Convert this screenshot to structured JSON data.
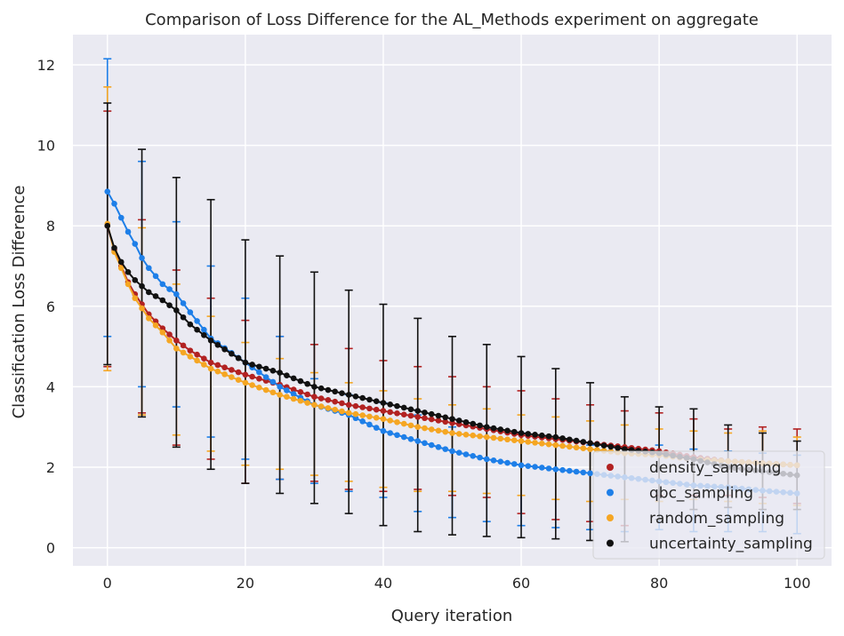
{
  "chart_data": {
    "type": "line",
    "title": "Comparison of Loss Difference for the AL_Methods experiment on aggregate",
    "xlabel": "Query iteration",
    "ylabel": "Classification Loss Difference",
    "xlim": [
      -5,
      105
    ],
    "ylim": [
      -0.45,
      12.75
    ],
    "xticks": [
      0,
      20,
      40,
      60,
      80,
      100
    ],
    "yticks": [
      0,
      2,
      4,
      6,
      8,
      10,
      12
    ],
    "x_max_iteration": 100,
    "errorbar_every": 5,
    "background": "#EAEAF2",
    "grid": true,
    "legend_position": "lower-right",
    "series": [
      {
        "name": "density_sampling",
        "color": "#B22222",
        "mean_anchors": [
          [
            0,
            8.0
          ],
          [
            1,
            7.4
          ],
          [
            2,
            7.0
          ],
          [
            3,
            6.6
          ],
          [
            4,
            6.3
          ],
          [
            5,
            6.05
          ],
          [
            6,
            5.8
          ],
          [
            8,
            5.45
          ],
          [
            10,
            5.15
          ],
          [
            12,
            4.9
          ],
          [
            15,
            4.6
          ],
          [
            20,
            4.3
          ],
          [
            25,
            4.05
          ],
          [
            30,
            3.75
          ],
          [
            35,
            3.55
          ],
          [
            40,
            3.4
          ],
          [
            45,
            3.25
          ],
          [
            50,
            3.1
          ],
          [
            55,
            2.95
          ],
          [
            60,
            2.8
          ],
          [
            65,
            2.7
          ],
          [
            70,
            2.6
          ],
          [
            75,
            2.5
          ],
          [
            80,
            2.4
          ],
          [
            85,
            2.25
          ],
          [
            90,
            2.15
          ],
          [
            95,
            2.1
          ],
          [
            100,
            2.05
          ]
        ],
        "err_low": [
          [
            0,
            4.5
          ],
          [
            5,
            3.35
          ],
          [
            10,
            2.55
          ],
          [
            15,
            2.2
          ],
          [
            20,
            1.6
          ],
          [
            25,
            1.7
          ],
          [
            30,
            1.65
          ],
          [
            35,
            1.45
          ],
          [
            40,
            1.4
          ],
          [
            45,
            1.45
          ],
          [
            50,
            1.3
          ],
          [
            55,
            1.25
          ],
          [
            60,
            0.85
          ],
          [
            65,
            0.7
          ],
          [
            70,
            0.65
          ],
          [
            75,
            0.55
          ],
          [
            80,
            1.3
          ],
          [
            85,
            1.3
          ],
          [
            90,
            1.3
          ],
          [
            95,
            1.25
          ],
          [
            100,
            1.1
          ]
        ],
        "err_high": [
          [
            0,
            10.85
          ],
          [
            5,
            8.15
          ],
          [
            10,
            6.9
          ],
          [
            15,
            6.2
          ],
          [
            20,
            5.65
          ],
          [
            25,
            5.25
          ],
          [
            30,
            5.05
          ],
          [
            35,
            4.95
          ],
          [
            40,
            4.65
          ],
          [
            45,
            4.5
          ],
          [
            50,
            4.25
          ],
          [
            55,
            4.0
          ],
          [
            60,
            3.9
          ],
          [
            65,
            3.7
          ],
          [
            70,
            3.55
          ],
          [
            75,
            3.4
          ],
          [
            80,
            3.35
          ],
          [
            85,
            3.2
          ],
          [
            90,
            2.95
          ],
          [
            95,
            3.0
          ],
          [
            100,
            2.95
          ]
        ]
      },
      {
        "name": "qbc_sampling",
        "color": "#1E7FE8",
        "mean_anchors": [
          [
            0,
            8.85
          ],
          [
            1,
            8.55
          ],
          [
            2,
            8.2
          ],
          [
            3,
            7.85
          ],
          [
            4,
            7.55
          ],
          [
            5,
            7.2
          ],
          [
            6,
            6.95
          ],
          [
            8,
            6.55
          ],
          [
            10,
            6.3
          ],
          [
            12,
            5.85
          ],
          [
            15,
            5.2
          ],
          [
            20,
            4.6
          ],
          [
            25,
            4.0
          ],
          [
            30,
            3.55
          ],
          [
            35,
            3.3
          ],
          [
            40,
            2.9
          ],
          [
            45,
            2.65
          ],
          [
            50,
            2.4
          ],
          [
            55,
            2.2
          ],
          [
            60,
            2.05
          ],
          [
            65,
            1.95
          ],
          [
            70,
            1.85
          ],
          [
            75,
            1.75
          ],
          [
            80,
            1.65
          ],
          [
            85,
            1.55
          ],
          [
            90,
            1.5
          ],
          [
            95,
            1.42
          ],
          [
            100,
            1.35
          ]
        ],
        "err_low": [
          [
            0,
            5.25
          ],
          [
            5,
            4.0
          ],
          [
            10,
            3.5
          ],
          [
            15,
            2.75
          ],
          [
            20,
            2.2
          ],
          [
            25,
            1.7
          ],
          [
            30,
            1.6
          ],
          [
            35,
            1.4
          ],
          [
            40,
            1.25
          ],
          [
            45,
            0.9
          ],
          [
            50,
            0.75
          ],
          [
            55,
            0.65
          ],
          [
            60,
            0.55
          ],
          [
            65,
            0.5
          ],
          [
            70,
            0.45
          ],
          [
            75,
            0.4
          ],
          [
            80,
            0.45
          ],
          [
            85,
            0.4
          ],
          [
            90,
            0.4
          ],
          [
            95,
            0.4
          ],
          [
            100,
            0.35
          ]
        ],
        "err_high": [
          [
            0,
            12.15
          ],
          [
            5,
            9.6
          ],
          [
            10,
            8.1
          ],
          [
            15,
            7.0
          ],
          [
            20,
            6.2
          ],
          [
            25,
            5.25
          ],
          [
            30,
            4.2
          ],
          [
            35,
            3.8
          ],
          [
            40,
            3.6
          ],
          [
            45,
            3.3
          ],
          [
            50,
            3.0
          ],
          [
            55,
            2.95
          ],
          [
            60,
            2.85
          ],
          [
            65,
            2.7
          ],
          [
            70,
            2.55
          ],
          [
            75,
            2.5
          ],
          [
            80,
            2.55
          ],
          [
            85,
            2.45
          ],
          [
            90,
            2.4
          ],
          [
            95,
            2.35
          ],
          [
            100,
            2.3
          ]
        ]
      },
      {
        "name": "random_sampling",
        "color": "#F5A623",
        "mean_anchors": [
          [
            0,
            8.05
          ],
          [
            1,
            7.35
          ],
          [
            2,
            6.95
          ],
          [
            3,
            6.55
          ],
          [
            4,
            6.2
          ],
          [
            5,
            5.95
          ],
          [
            6,
            5.7
          ],
          [
            8,
            5.35
          ],
          [
            10,
            4.95
          ],
          [
            12,
            4.75
          ],
          [
            15,
            4.45
          ],
          [
            20,
            4.1
          ],
          [
            25,
            3.8
          ],
          [
            30,
            3.55
          ],
          [
            35,
            3.35
          ],
          [
            40,
            3.2
          ],
          [
            45,
            3.0
          ],
          [
            50,
            2.85
          ],
          [
            55,
            2.75
          ],
          [
            60,
            2.65
          ],
          [
            65,
            2.55
          ],
          [
            70,
            2.45
          ],
          [
            75,
            2.35
          ],
          [
            80,
            2.3
          ],
          [
            85,
            2.2
          ],
          [
            90,
            2.15
          ],
          [
            95,
            2.1
          ],
          [
            100,
            2.05
          ]
        ],
        "err_low": [
          [
            0,
            4.4
          ],
          [
            5,
            3.3
          ],
          [
            10,
            2.8
          ],
          [
            15,
            2.4
          ],
          [
            20,
            2.05
          ],
          [
            25,
            1.95
          ],
          [
            30,
            1.8
          ],
          [
            35,
            1.65
          ],
          [
            40,
            1.5
          ],
          [
            45,
            1.4
          ],
          [
            50,
            1.4
          ],
          [
            55,
            1.35
          ],
          [
            60,
            1.3
          ],
          [
            65,
            1.2
          ],
          [
            70,
            1.15
          ],
          [
            75,
            1.2
          ],
          [
            80,
            1.15
          ],
          [
            85,
            1.2
          ],
          [
            90,
            1.15
          ],
          [
            95,
            1.1
          ],
          [
            100,
            1.05
          ]
        ],
        "err_high": [
          [
            0,
            11.45
          ],
          [
            5,
            7.95
          ],
          [
            10,
            6.55
          ],
          [
            15,
            5.75
          ],
          [
            20,
            5.1
          ],
          [
            25,
            4.7
          ],
          [
            30,
            4.35
          ],
          [
            35,
            4.1
          ],
          [
            40,
            3.9
          ],
          [
            45,
            3.7
          ],
          [
            50,
            3.55
          ],
          [
            55,
            3.45
          ],
          [
            60,
            3.3
          ],
          [
            65,
            3.25
          ],
          [
            70,
            3.15
          ],
          [
            75,
            3.05
          ],
          [
            80,
            2.95
          ],
          [
            85,
            2.9
          ],
          [
            90,
            2.85
          ],
          [
            95,
            2.9
          ],
          [
            100,
            2.75
          ]
        ]
      },
      {
        "name": "uncertainty_sampling",
        "color": "#111111",
        "mean_anchors": [
          [
            0,
            8.0
          ],
          [
            1,
            7.45
          ],
          [
            2,
            7.1
          ],
          [
            3,
            6.85
          ],
          [
            4,
            6.65
          ],
          [
            5,
            6.5
          ],
          [
            6,
            6.35
          ],
          [
            8,
            6.15
          ],
          [
            10,
            5.9
          ],
          [
            12,
            5.55
          ],
          [
            15,
            5.15
          ],
          [
            20,
            4.6
          ],
          [
            25,
            4.35
          ],
          [
            30,
            4.0
          ],
          [
            35,
            3.8
          ],
          [
            40,
            3.6
          ],
          [
            45,
            3.4
          ],
          [
            50,
            3.2
          ],
          [
            55,
            3.0
          ],
          [
            60,
            2.85
          ],
          [
            65,
            2.75
          ],
          [
            70,
            2.6
          ],
          [
            75,
            2.45
          ],
          [
            80,
            2.35
          ],
          [
            85,
            2.2
          ],
          [
            90,
            2.0
          ],
          [
            95,
            1.9
          ],
          [
            100,
            1.8
          ]
        ],
        "err_low": [
          [
            0,
            4.55
          ],
          [
            5,
            3.25
          ],
          [
            10,
            2.5
          ],
          [
            15,
            1.95
          ],
          [
            20,
            1.6
          ],
          [
            25,
            1.35
          ],
          [
            30,
            1.1
          ],
          [
            35,
            0.85
          ],
          [
            40,
            0.55
          ],
          [
            45,
            0.4
          ],
          [
            50,
            0.32
          ],
          [
            55,
            0.28
          ],
          [
            60,
            0.25
          ],
          [
            65,
            0.22
          ],
          [
            70,
            0.18
          ],
          [
            75,
            0.15
          ],
          [
            80,
            0.7
          ],
          [
            85,
            0.95
          ],
          [
            90,
            1.0
          ],
          [
            95,
            0.95
          ],
          [
            100,
            0.95
          ]
        ],
        "err_high": [
          [
            0,
            11.05
          ],
          [
            5,
            9.9
          ],
          [
            10,
            9.2
          ],
          [
            15,
            8.65
          ],
          [
            20,
            7.65
          ],
          [
            25,
            7.25
          ],
          [
            30,
            6.85
          ],
          [
            35,
            6.4
          ],
          [
            40,
            6.05
          ],
          [
            45,
            5.7
          ],
          [
            50,
            5.25
          ],
          [
            55,
            5.05
          ],
          [
            60,
            4.75
          ],
          [
            65,
            4.45
          ],
          [
            70,
            4.1
          ],
          [
            75,
            3.75
          ],
          [
            80,
            3.5
          ],
          [
            85,
            3.45
          ],
          [
            90,
            3.05
          ],
          [
            95,
            2.85
          ],
          [
            100,
            2.65
          ]
        ]
      }
    ]
  }
}
